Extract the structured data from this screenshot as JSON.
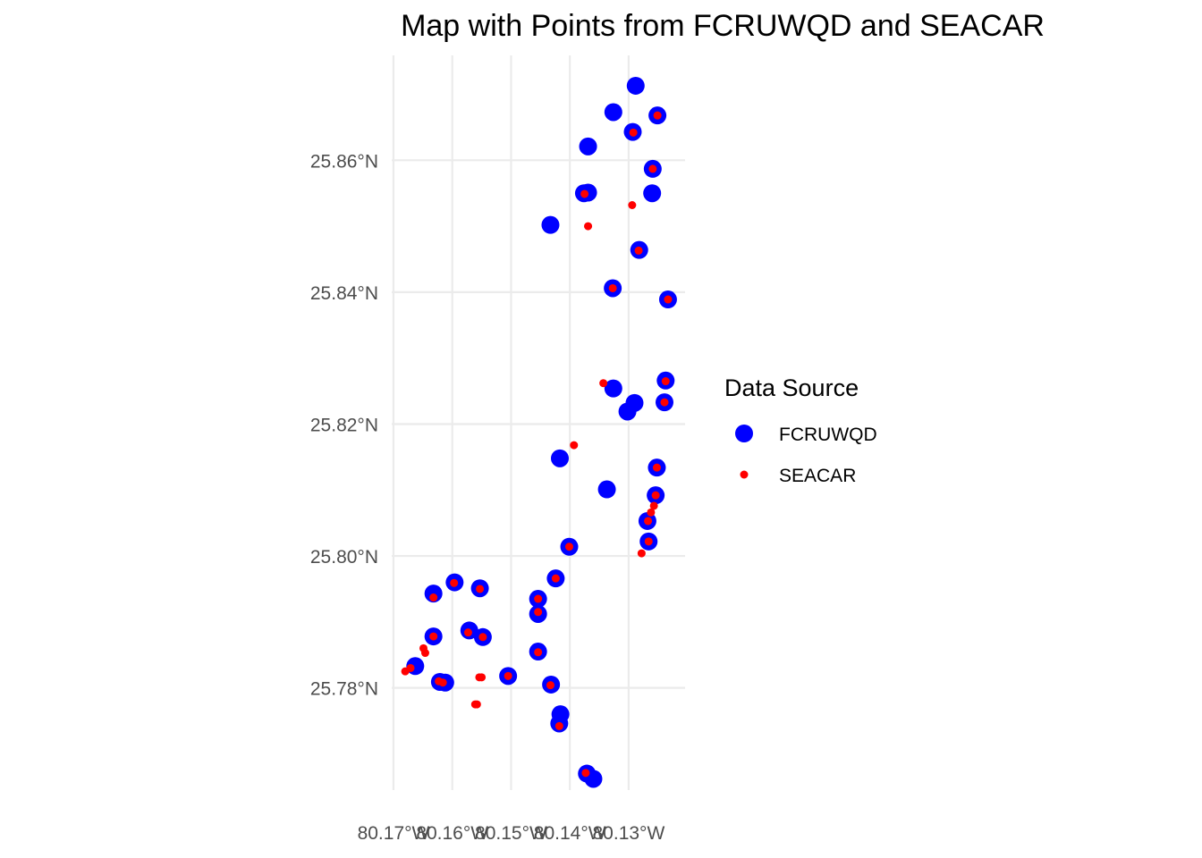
{
  "chart_data": {
    "type": "scatter",
    "title": "Map with Points from FCRUWQD and SEACAR",
    "xlabel": "",
    "ylabel": "",
    "xlim": [
      -80.1703,
      -80.1204
    ],
    "ylim": [
      25.7645,
      25.8759
    ],
    "x_ticks": [
      -80.17,
      -80.16,
      -80.15,
      -80.14,
      -80.13
    ],
    "x_tick_labels": [
      "80.17°W",
      "80.16°W",
      "80.15°W",
      "80.14°W",
      "80.13°W"
    ],
    "y_ticks": [
      25.78,
      25.8,
      25.82,
      25.84,
      25.86
    ],
    "y_tick_labels": [
      "25.78°N",
      "25.80°N",
      "25.82°N",
      "25.84°N",
      "25.86°N"
    ],
    "grid": true,
    "legend": {
      "title": "Data Source",
      "position": "right",
      "entries": [
        {
          "label": "FCRUWQD",
          "color": "#0000ff"
        },
        {
          "label": "SEACAR",
          "color": "#ff0000"
        }
      ]
    },
    "series": [
      {
        "name": "FCRUWQD",
        "color": "#0000ff",
        "points": [
          [
            -80.1288,
            25.8713
          ],
          [
            -80.1326,
            25.8673
          ],
          [
            -80.1251,
            25.8668
          ],
          [
            -80.1293,
            25.8643
          ],
          [
            -80.1369,
            25.8621
          ],
          [
            -80.1259,
            25.8587
          ],
          [
            -80.1369,
            25.8551
          ],
          [
            -80.1376,
            25.855
          ],
          [
            -80.126,
            25.855
          ],
          [
            -80.1433,
            25.8502
          ],
          [
            -80.1282,
            25.8464
          ],
          [
            -80.1327,
            25.8406
          ],
          [
            -80.1233,
            25.8389
          ],
          [
            -80.1237,
            25.8266
          ],
          [
            -80.1326,
            25.8254
          ],
          [
            -80.129,
            25.8232
          ],
          [
            -80.1239,
            25.8233
          ],
          [
            -80.1302,
            25.8219
          ],
          [
            -80.1417,
            25.8148
          ],
          [
            -80.1252,
            25.8134
          ],
          [
            -80.1337,
            25.8101
          ],
          [
            -80.1254,
            25.8092
          ],
          [
            -80.1268,
            25.8053
          ],
          [
            -80.1266,
            25.8022
          ],
          [
            -80.1401,
            25.8014
          ],
          [
            -80.1424,
            25.7966
          ],
          [
            -80.1596,
            25.796
          ],
          [
            -80.1553,
            25.7951
          ],
          [
            -80.1632,
            25.7943
          ],
          [
            -80.1454,
            25.7935
          ],
          [
            -80.1454,
            25.7912
          ],
          [
            -80.1571,
            25.7887
          ],
          [
            -80.1632,
            25.7878
          ],
          [
            -80.1548,
            25.7877
          ],
          [
            -80.1454,
            25.7855
          ],
          [
            -80.1663,
            25.7833
          ],
          [
            -80.1505,
            25.7818
          ],
          [
            -80.1621,
            25.7809
          ],
          [
            -80.1612,
            25.7808
          ],
          [
            -80.1432,
            25.7805
          ],
          [
            -80.1416,
            25.776
          ],
          [
            -80.1418,
            25.7746
          ],
          [
            -80.1371,
            25.767
          ],
          [
            -80.136,
            25.7662
          ]
        ]
      },
      {
        "name": "SEACAR",
        "color": "#ff0000",
        "points": [
          [
            -80.1251,
            25.8668
          ],
          [
            -80.1292,
            25.8642
          ],
          [
            -80.1259,
            25.8587
          ],
          [
            -80.1375,
            25.8549
          ],
          [
            -80.1294,
            25.8532
          ],
          [
            -80.1369,
            25.85
          ],
          [
            -80.1283,
            25.8463
          ],
          [
            -80.1327,
            25.8406
          ],
          [
            -80.1233,
            25.8389
          ],
          [
            -80.1343,
            25.8262
          ],
          [
            -80.1237,
            25.8265
          ],
          [
            -80.1239,
            25.8233
          ],
          [
            -80.1393,
            25.8168
          ],
          [
            -80.1252,
            25.8134
          ],
          [
            -80.1254,
            25.8092
          ],
          [
            -80.1257,
            25.8076
          ],
          [
            -80.1262,
            25.8066
          ],
          [
            -80.1267,
            25.8053
          ],
          [
            -80.1266,
            25.8022
          ],
          [
            -80.1278,
            25.8004
          ],
          [
            -80.1401,
            25.8014
          ],
          [
            -80.1424,
            25.7966
          ],
          [
            -80.1597,
            25.7959
          ],
          [
            -80.1553,
            25.795
          ],
          [
            -80.1632,
            25.7937
          ],
          [
            -80.1454,
            25.7935
          ],
          [
            -80.1454,
            25.7915
          ],
          [
            -80.1573,
            25.7884
          ],
          [
            -80.1632,
            25.7878
          ],
          [
            -80.1548,
            25.7877
          ],
          [
            -80.1454,
            25.7854
          ],
          [
            -80.1649,
            25.786
          ],
          [
            -80.1646,
            25.7853
          ],
          [
            -80.1671,
            25.783
          ],
          [
            -80.168,
            25.7825
          ],
          [
            -80.1505,
            25.7818
          ],
          [
            -80.1554,
            25.7816
          ],
          [
            -80.155,
            25.7816
          ],
          [
            -80.1623,
            25.781
          ],
          [
            -80.1616,
            25.7808
          ],
          [
            -80.1433,
            25.7804
          ],
          [
            -80.1561,
            25.7775
          ],
          [
            -80.1558,
            25.7775
          ],
          [
            -80.1418,
            25.7742
          ],
          [
            -80.1373,
            25.7671
          ]
        ]
      }
    ]
  }
}
